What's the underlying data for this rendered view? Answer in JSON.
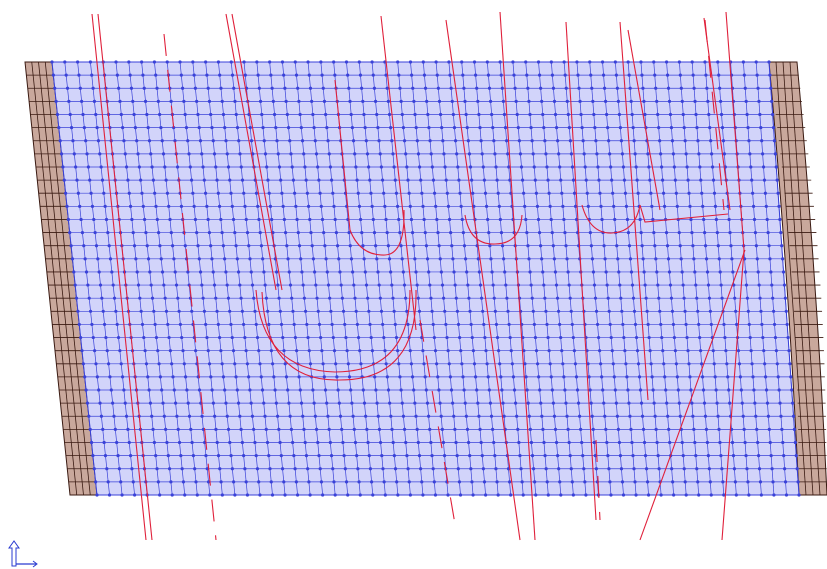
{
  "colors": {
    "background": "#ffffff",
    "mesh_fill": "#d2d4fa",
    "mesh_line": "#3a42d8",
    "mesh_node": "#3a42d8",
    "border_fill": "#c9a89c",
    "border_line": "#3a1a12",
    "curve": "#e0203a"
  },
  "mesh": {
    "cols": 56,
    "rows": 33,
    "border_cols": 4
  },
  "axis_icon": "axis-triad-icon"
}
